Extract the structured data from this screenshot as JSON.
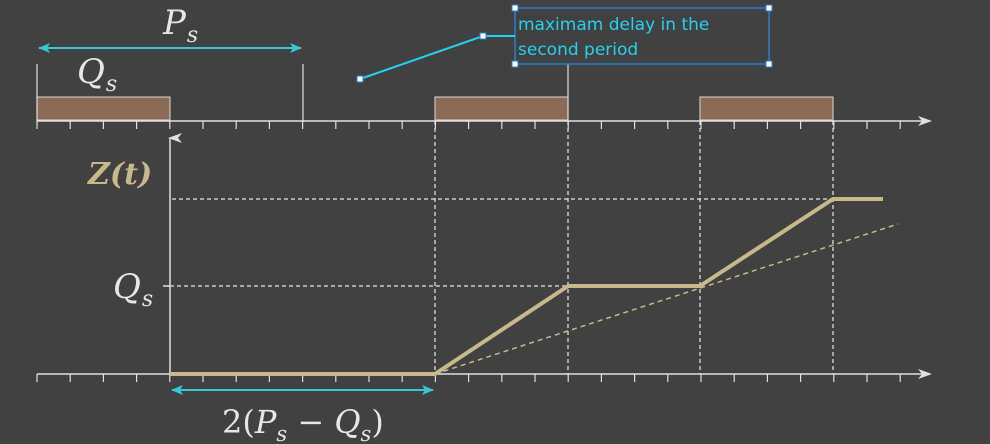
{
  "labels": {
    "period": "P",
    "period_sub": "s",
    "budget": "Q",
    "budget_sub": "s",
    "z_axis": "Z(t)",
    "q_level": "Q",
    "q_level_sub": "s",
    "interval_prefix": "2(",
    "interval_p": "P",
    "interval_p_sub": "s",
    "interval_minus": " − ",
    "interval_q": "Q",
    "interval_q_sub": "s",
    "interval_suffix": ")"
  },
  "callout": {
    "line1": "maximam delay in the",
    "line2": "second period"
  },
  "colors": {
    "background": "#414141",
    "budget_block": "#8b6b55",
    "curve": "#c7b98a",
    "accent_arrow": "#35c8d8",
    "callout_text": "#22d3f0",
    "axis": "#e0e0e0"
  }
}
